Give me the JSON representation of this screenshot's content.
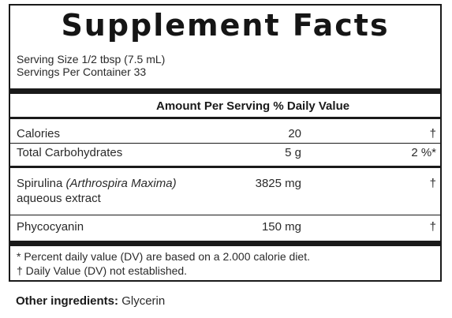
{
  "title": "Supplement Facts",
  "serving": {
    "size": "Serving Size 1/2 tbsp (7.5 mL)",
    "per_container": "Servings Per Container 33"
  },
  "columns_header": "Amount Per Serving % Daily Value",
  "rows": [
    {
      "name": "Calories",
      "amount": "20",
      "dv": "†"
    },
    {
      "name": "Total Carbohydrates",
      "amount": "5 g",
      "dv": "2 %*"
    },
    {
      "name": "Spirulina",
      "name_italic": "(Arthrospira Maxima)",
      "name_line2": "aqueous extract",
      "amount": "3825 mg",
      "dv": "†"
    },
    {
      "name": "Phycocyanin",
      "amount": "150 mg",
      "dv": "†"
    }
  ],
  "footnotes": [
    "* Percent daily value (DV) are based on a 2.000 calorie diet.",
    "† Daily Value (DV) not established."
  ],
  "other_ingredients": {
    "label": "Other ingredients:",
    "value": "Glycerin"
  }
}
